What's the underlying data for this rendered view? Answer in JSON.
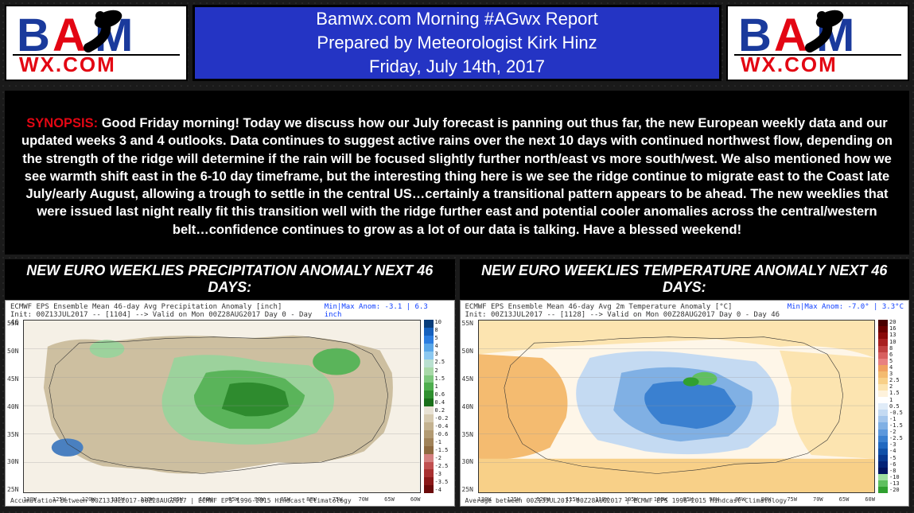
{
  "header": {
    "title_line1": "Bamwx.com Morning #AGwx Report",
    "title_line2": "Prepared by Meteorologist Kirk Hinz",
    "title_line3": "Friday, July 14th, 2017",
    "title_bg": "#2434c4",
    "title_color": "#ffffff",
    "logo": {
      "text_top": "BAM",
      "text_bottom": "WX.COM",
      "b_color": "#1a3a9c",
      "a_color": "#e30613",
      "m_color": "#1a3a9c",
      "bottom_color": "#e30613",
      "swoosh_color": "#000000"
    }
  },
  "synopsis": {
    "label": "SYNOPSIS:",
    "label_color": "#e30613",
    "text": " Good Friday morning! Today we discuss how our July forecast is panning out thus far, the new European weekly data and our updated weeks 3 and 4 outlooks. Data continues to suggest active rains over the next 10 days with continued northwest flow, depending on the strength of the ridge will determine if the rain will be focused slightly further north/east vs more south/west. We also mentioned how we see warmth shift east in the 6-10 day timeframe, but the interesting thing here is we see the ridge continue to migrate east to the Coast late July/early August, allowing a trough to settle in the central US…certainly a transitional pattern appears to be ahead. The new weeklies that were issued last night really fit this transition well with the ridge further east and potential cooler anomalies across the central/western belt…confidence continues to grow as a lot of our data is talking.  Have a blessed weekend!"
  },
  "maps": {
    "precip": {
      "title": "NEW EURO WEEKLIES PRECIPITATION ANOMALY NEXT 46 DAYS:",
      "meta_left": "ECMWF EPS Ensemble Mean 46-day Avg Precipitation Anomaly [inch]",
      "meta_init": "Init: 00Z13JUL2017 -- [1104] --> Valid on Mon 00Z28AUG2017  Day 0 - Day 46",
      "meta_right": "Min|Max Anom: -3.1 | 6.3 inch",
      "footer": "Accumulation between 00Z13JUL2017-00Z28AUG2017 | ECMWF EPS 1996-2015 Hindcast Climatology",
      "y_ticks": [
        "55N",
        "50N",
        "45N",
        "40N",
        "35N",
        "30N",
        "25N"
      ],
      "x_ticks": [
        "130W",
        "125W",
        "120W",
        "115W",
        "110W",
        "105W",
        "100W",
        "95W",
        "90W",
        "85W",
        "80W",
        "75W",
        "70W",
        "65W",
        "60W"
      ],
      "colorbar": {
        "colors": [
          "#083d7a",
          "#1560bd",
          "#2b7de0",
          "#5aa7e8",
          "#8cc8f0",
          "#b9e0d0",
          "#a8d9a8",
          "#7dc87d",
          "#4eae4e",
          "#2f8f2f",
          "#1a6f1a",
          "#e8e2d4",
          "#d6cab0",
          "#c4b290",
          "#b29a72",
          "#a08258",
          "#8e6a40",
          "#d48080",
          "#c05050",
          "#a83030",
          "#8a1818",
          "#6a0a0a"
        ],
        "labels": [
          "10",
          "8",
          "5",
          "4",
          "3",
          "2.5",
          "2",
          "1.5",
          "1",
          "0.6",
          "0.4",
          "0.2",
          "-0.2",
          "-0.4",
          "-0.6",
          "-1",
          "-1.5",
          "-2",
          "-2.5",
          "-3",
          "-3.5",
          "-4"
        ]
      },
      "field_colors": {
        "ocean": "#f5f0e6",
        "dry_base": "#cdbfa0",
        "wet_light": "#9cd29c",
        "wet_mid": "#5ab45a",
        "wet_dark": "#2e8b2e",
        "very_dry": "#a88860"
      }
    },
    "temp": {
      "title": "NEW EURO WEEKLIES TEMPERATURE ANOMALY NEXT 46 DAYS:",
      "meta_left": "ECMWF EPS Ensemble Mean 46-day Avg 2m Temperature Anomaly [°C]",
      "meta_init": "Init: 00Z13JUL2017 -- [1128] --> Valid on Mon 00Z28AUG2017  Day 0 - Day 46",
      "meta_right": "Min|Max Anom: -7.0° | 3.3°C",
      "footer": "Average between 00Z13JUL2017-00Z28AUG2017 | ECMWF EPS 1996-2015 Hindcast Climatology",
      "y_ticks": [
        "55N",
        "50N",
        "45N",
        "40N",
        "35N",
        "30N",
        "25N"
      ],
      "x_ticks": [
        "130W",
        "125W",
        "120W",
        "115W",
        "110W",
        "105W",
        "100W",
        "95W",
        "90W",
        "85W",
        "80W",
        "75W",
        "70W",
        "65W",
        "60W"
      ],
      "colorbar": {
        "colors": [
          "#4a0000",
          "#6a0000",
          "#8a0a0a",
          "#a82020",
          "#c04040",
          "#d86060",
          "#e88080",
          "#f0a060",
          "#f4bb70",
          "#f8d088",
          "#fce4b0",
          "#fef2dc",
          "#ffffff",
          "#e0ecf8",
          "#c4daf2",
          "#a4c6ec",
          "#80b0e4",
          "#5c98dc",
          "#3a80d0",
          "#2068c0",
          "#1050a8",
          "#083890",
          "#042478",
          "#021460",
          "#a0e0a0",
          "#60c060",
          "#30a030"
        ],
        "labels": [
          "20",
          "16",
          "13",
          "10",
          "8",
          "6",
          "5",
          "4",
          "3",
          "2.5",
          "2",
          "1.5",
          "1",
          "0.5",
          "-0.5",
          "-1",
          "-1.5",
          "-2",
          "-2.5",
          "-3",
          "-4",
          "-5",
          "-6",
          "-8",
          "-10",
          "-13",
          "-20"
        ]
      },
      "field_colors": {
        "warm_edge": "#f4bb70",
        "warm_light": "#fce4b0",
        "neutral": "#fef6e8",
        "cool_light": "#c4daf2",
        "cool_mid": "#80b0e4",
        "cool_dark": "#3a80d0",
        "green_spot": "#60c060"
      }
    }
  }
}
